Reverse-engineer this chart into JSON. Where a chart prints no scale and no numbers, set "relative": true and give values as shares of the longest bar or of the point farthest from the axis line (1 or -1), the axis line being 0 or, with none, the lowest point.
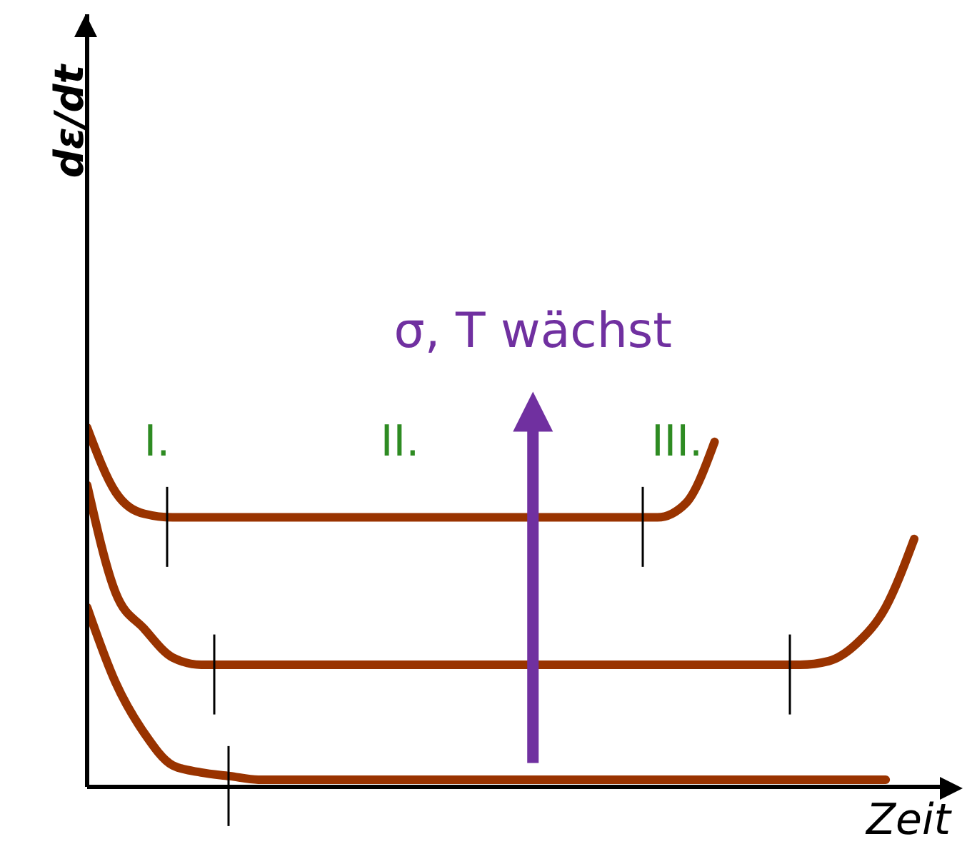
{
  "chart_data": {
    "type": "line",
    "relative": true,
    "xlabel": "Zeit",
    "annotations": [
      "σ, T wächst",
      "I.",
      "II.",
      "III.",
      "dε/dt"
    ],
    "categories": [
      null,
      null,
      null,
      null,
      null,
      null,
      null,
      null,
      null,
      null,
      null,
      null,
      null,
      null,
      null,
      null,
      null,
      null,
      null,
      null,
      null,
      null,
      null,
      null,
      null,
      null,
      null,
      null,
      null,
      null
    ],
    "series": [
      {
        "color": "#993300",
        "values": [
          1.0,
          0.82,
          0.76,
          0.75,
          0.75,
          0.75,
          0.75,
          0.75,
          0.75,
          0.75,
          0.75,
          0.75,
          0.75,
          0.75,
          0.75,
          0.75,
          0.75,
          0.75,
          0.75,
          0.75,
          0.75,
          0.79,
          0.96,
          null,
          null,
          null,
          null,
          null,
          null,
          null
        ]
      },
      {
        "color": "#993300",
        "values": [
          0.84,
          0.54,
          0.44,
          0.36,
          0.34,
          0.34,
          0.34,
          0.34,
          0.34,
          0.34,
          0.34,
          0.34,
          0.34,
          0.34,
          0.34,
          0.34,
          0.34,
          0.34,
          0.34,
          0.34,
          0.34,
          0.34,
          0.34,
          0.34,
          0.34,
          0.34,
          0.35,
          0.4,
          0.5,
          0.69
        ]
      },
      {
        "color": "#993300",
        "values": [
          0.5,
          0.29,
          0.15,
          0.06,
          0.04,
          0.03,
          0.02,
          0.02,
          0.02,
          0.02,
          0.02,
          0.02,
          0.02,
          0.02,
          0.02,
          0.02,
          0.02,
          0.02,
          0.02,
          0.02,
          0.02,
          0.02,
          0.02,
          0.02,
          0.02,
          0.02,
          0.02,
          0.02,
          0.02,
          null
        ]
      }
    ],
    "legend": false,
    "grid": false,
    "marker": "none",
    "line_style": "solid"
  }
}
